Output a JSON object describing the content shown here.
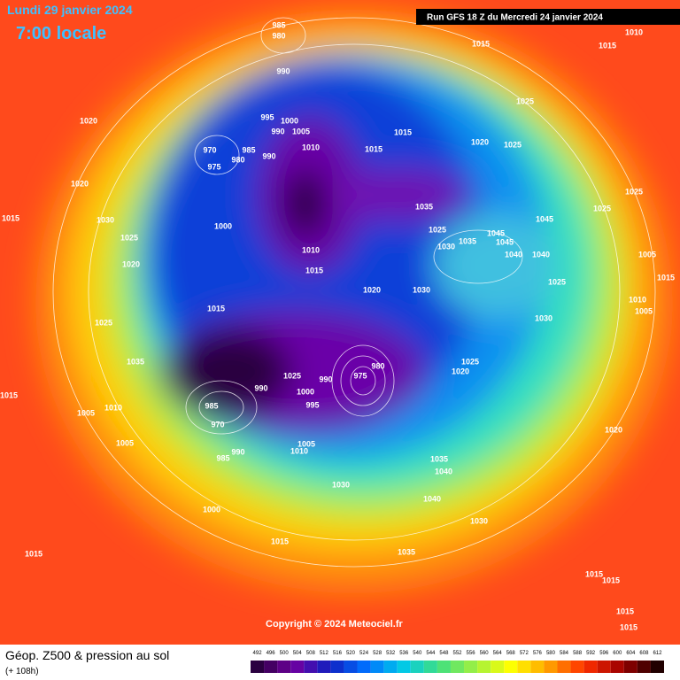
{
  "header": {
    "date": "Lundi 29 janvier 2024",
    "time": "7:00 locale",
    "run": "Run GFS 18 Z du Mercredi 24 janvier 2024"
  },
  "copyright": "Copyright © 2024 Meteociel.fr",
  "footer": {
    "title": "Géop. Z500 & pression au sol",
    "subtitle": "(+ 108h)"
  },
  "legend_ticks": [
    "492",
    "496",
    "500",
    "504",
    "508",
    "512",
    "516",
    "520",
    "524",
    "528",
    "532",
    "536",
    "540",
    "544",
    "548",
    "552",
    "556",
    "560",
    "564",
    "568",
    "572",
    "576",
    "580",
    "584",
    "588",
    "592",
    "596",
    "600",
    "604",
    "608",
    "612"
  ],
  "pressure_labels": [
    "985",
    "980",
    "990",
    "1015",
    "1015",
    "1010",
    "1020",
    "995",
    "1000",
    "990",
    "1005",
    "1015",
    "1020",
    "1025",
    "1025",
    "970",
    "985",
    "990",
    "1010",
    "1015",
    "975",
    "980",
    "1020",
    "1025",
    "1015",
    "1030",
    "1035",
    "1045",
    "1025",
    "1000",
    "1025",
    "1045",
    "1030",
    "1035",
    "1045",
    "1025",
    "1010",
    "1040",
    "1040",
    "1005",
    "1020",
    "1015",
    "1020",
    "1030",
    "1025",
    "1015",
    "1010",
    "1005",
    "1015",
    "1030",
    "1025",
    "1035",
    "1025",
    "1020",
    "980",
    "975",
    "1025",
    "1000",
    "990",
    "995",
    "990",
    "985",
    "970",
    "1015",
    "1005",
    "1010",
    "1005",
    "1005",
    "1010",
    "990",
    "985",
    "1020",
    "1035",
    "1040",
    "1030",
    "1040",
    "1030",
    "1000",
    "1015",
    "1035",
    "1015",
    "1015",
    "1015",
    "1015",
    "1015"
  ]
}
